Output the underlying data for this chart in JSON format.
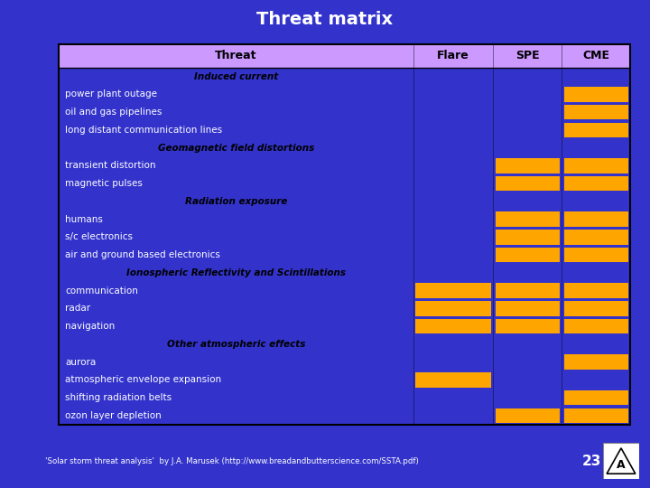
{
  "title": "Threat matrix",
  "title_color": "#ffffff",
  "bg_color": "#3333cc",
  "header_bg": "#cc99ff",
  "header_text_color": "#000000",
  "orange": "#FFA500",
  "border_color": "#000000",
  "columns": [
    "Threat",
    "Flare",
    "SPE",
    "CME"
  ],
  "col_bounds": [
    0.0,
    0.62,
    0.76,
    0.88,
    1.0
  ],
  "rows": [
    {
      "label": "Induced current",
      "category": true,
      "italic": true,
      "bold": true,
      "flare": false,
      "spe": false,
      "cme": false
    },
    {
      "label": "power plant outage",
      "category": false,
      "italic": false,
      "bold": false,
      "flare": false,
      "spe": false,
      "cme": true
    },
    {
      "label": "oil and gas pipelines",
      "category": false,
      "italic": false,
      "bold": false,
      "flare": false,
      "spe": false,
      "cme": true
    },
    {
      "label": "long distant communication lines",
      "category": false,
      "italic": false,
      "bold": false,
      "flare": false,
      "spe": false,
      "cme": true
    },
    {
      "label": "Geomagnetic field distortions",
      "category": true,
      "italic": true,
      "bold": true,
      "flare": false,
      "spe": false,
      "cme": false
    },
    {
      "label": "transient distortion",
      "category": false,
      "italic": false,
      "bold": false,
      "flare": false,
      "spe": true,
      "cme": true
    },
    {
      "label": "magnetic pulses",
      "category": false,
      "italic": false,
      "bold": false,
      "flare": false,
      "spe": true,
      "cme": true
    },
    {
      "label": "Radiation exposure",
      "category": true,
      "italic": true,
      "bold": true,
      "flare": false,
      "spe": false,
      "cme": false
    },
    {
      "label": "humans",
      "category": false,
      "italic": false,
      "bold": false,
      "flare": false,
      "spe": true,
      "cme": true
    },
    {
      "label": "s/c electronics",
      "category": false,
      "italic": false,
      "bold": false,
      "flare": false,
      "spe": true,
      "cme": true
    },
    {
      "label": "air and ground based electronics",
      "category": false,
      "italic": false,
      "bold": false,
      "flare": false,
      "spe": true,
      "cme": true
    },
    {
      "label": "Ionospheric Reflectivity and Scintillations",
      "category": true,
      "italic": true,
      "bold": true,
      "flare": false,
      "spe": false,
      "cme": false
    },
    {
      "label": "communication",
      "category": false,
      "italic": false,
      "bold": false,
      "flare": true,
      "spe": true,
      "cme": true
    },
    {
      "label": "radar",
      "category": false,
      "italic": false,
      "bold": false,
      "flare": true,
      "spe": true,
      "cme": true
    },
    {
      "label": "navigation",
      "category": false,
      "italic": false,
      "bold": false,
      "flare": true,
      "spe": true,
      "cme": true
    },
    {
      "label": "Other atmospheric effects",
      "category": true,
      "italic": true,
      "bold": true,
      "flare": false,
      "spe": false,
      "cme": false
    },
    {
      "label": "aurora",
      "category": false,
      "italic": false,
      "bold": false,
      "flare": false,
      "spe": false,
      "cme": true
    },
    {
      "label": "atmospheric envelope expansion",
      "category": false,
      "italic": false,
      "bold": false,
      "flare": true,
      "spe": false,
      "cme": false
    },
    {
      "label": "shifting radiation belts",
      "category": false,
      "italic": false,
      "bold": false,
      "flare": false,
      "spe": false,
      "cme": true
    },
    {
      "label": "ozon layer depletion",
      "category": false,
      "italic": false,
      "bold": false,
      "flare": false,
      "spe": true,
      "cme": true
    }
  ],
  "footer_text": "'Solar storm threat analysis'  by J.A. Marusek (http://www.breadandbutterscience.com/SSTA.pdf)",
  "slide_number": "23",
  "footer_color": "#ffffff"
}
